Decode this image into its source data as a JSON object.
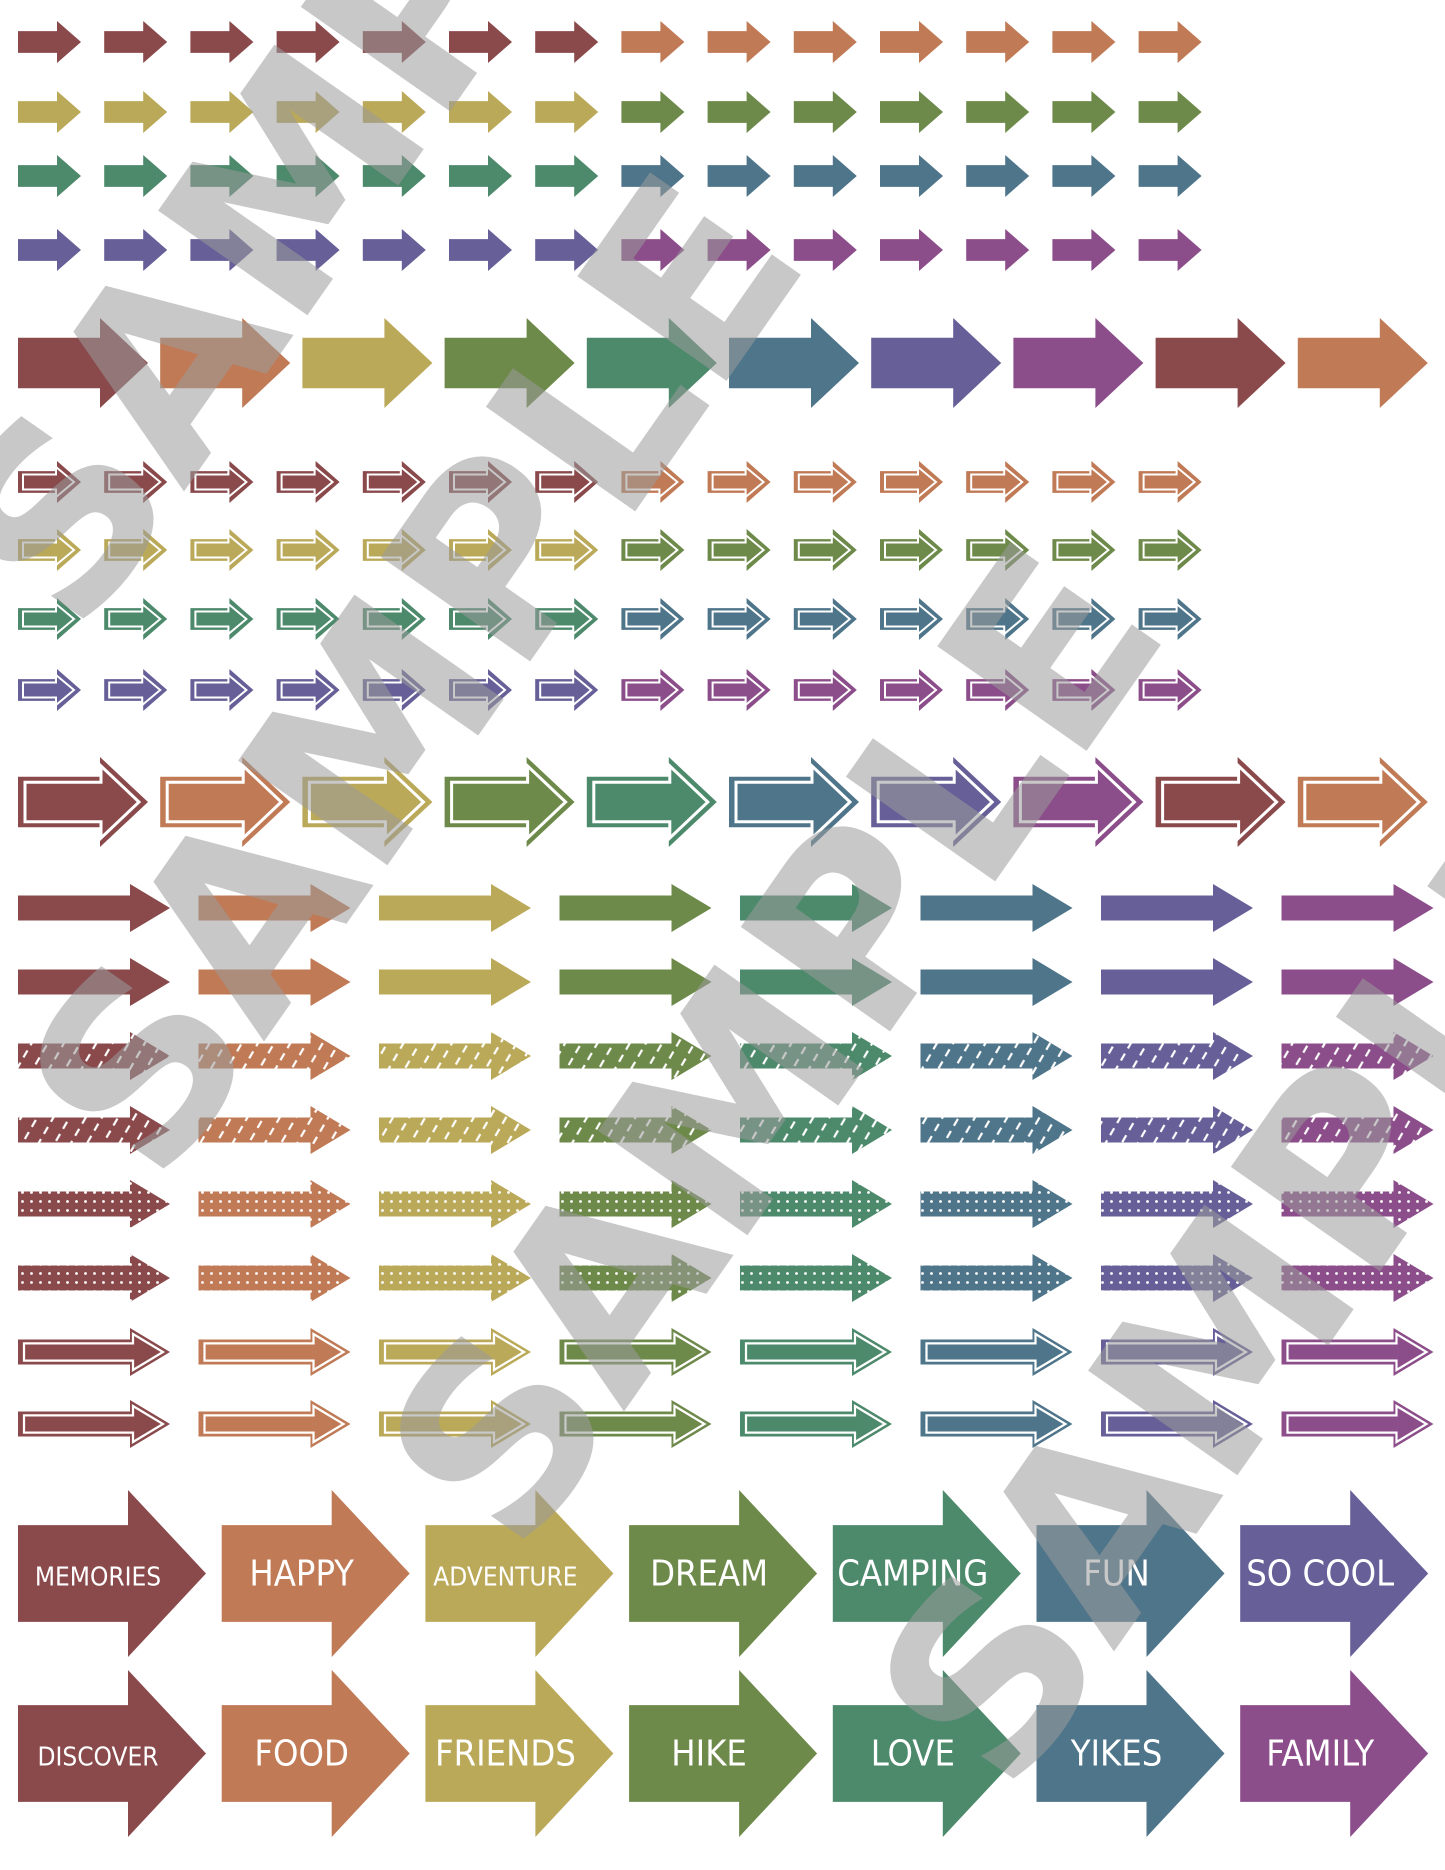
{
  "palette": {
    "maroon": "#8a4a4c",
    "orange": "#c07a55",
    "mustard": "#bba95a",
    "olive": "#6e8a4a",
    "teal": "#4d8a6c",
    "slate": "#4f758a",
    "indigo": "#665f98",
    "purple": "#8c4e8a"
  },
  "small_rows_color_order": [
    [
      "maroon",
      "maroon",
      "maroon",
      "maroon",
      "maroon",
      "maroon",
      "maroon",
      "orange",
      "orange",
      "orange",
      "orange",
      "orange",
      "orange",
      "orange"
    ],
    [
      "mustard",
      "mustard",
      "mustard",
      "mustard",
      "mustard",
      "mustard",
      "mustard",
      "olive",
      "olive",
      "olive",
      "olive",
      "olive",
      "olive",
      "olive"
    ],
    [
      "teal",
      "teal",
      "teal",
      "teal",
      "teal",
      "teal",
      "teal",
      "slate",
      "slate",
      "slate",
      "slate",
      "slate",
      "slate",
      "slate"
    ],
    [
      "indigo",
      "indigo",
      "indigo",
      "indigo",
      "indigo",
      "indigo",
      "indigo",
      "purple",
      "purple",
      "purple",
      "purple",
      "purple",
      "purple",
      "purple"
    ]
  ],
  "large_row_colors": [
    "maroon",
    "orange",
    "mustard",
    "olive",
    "teal",
    "slate",
    "indigo",
    "purple",
    "maroon",
    "orange"
  ],
  "long_arrow_colors": [
    "maroon",
    "orange",
    "mustard",
    "olive",
    "teal",
    "slate",
    "indigo",
    "purple"
  ],
  "long_arrow_styles": [
    "solid",
    "solid",
    "stripe",
    "stripe",
    "dots",
    "dots",
    "outline",
    "outline"
  ],
  "word_arrows": [
    {
      "label": "MEMORIES",
      "color": "maroon"
    },
    {
      "label": "HAPPY",
      "color": "orange"
    },
    {
      "label": "ADVENTURE",
      "color": "mustard"
    },
    {
      "label": "DREAM",
      "color": "olive"
    },
    {
      "label": "CAMPING",
      "color": "teal"
    },
    {
      "label": "FUN",
      "color": "slate"
    },
    {
      "label": "SO COOL",
      "color": "indigo"
    },
    {
      "label": "DISCOVER",
      "color": "maroon"
    },
    {
      "label": "FOOD",
      "color": "orange"
    },
    {
      "label": "FRIENDS",
      "color": "mustard"
    },
    {
      "label": "HIKE",
      "color": "olive"
    },
    {
      "label": "LOVE",
      "color": "teal"
    },
    {
      "label": "YIKES",
      "color": "slate"
    },
    {
      "label": "FAMILY",
      "color": "purple"
    }
  ],
  "watermark": "SAMPLE"
}
